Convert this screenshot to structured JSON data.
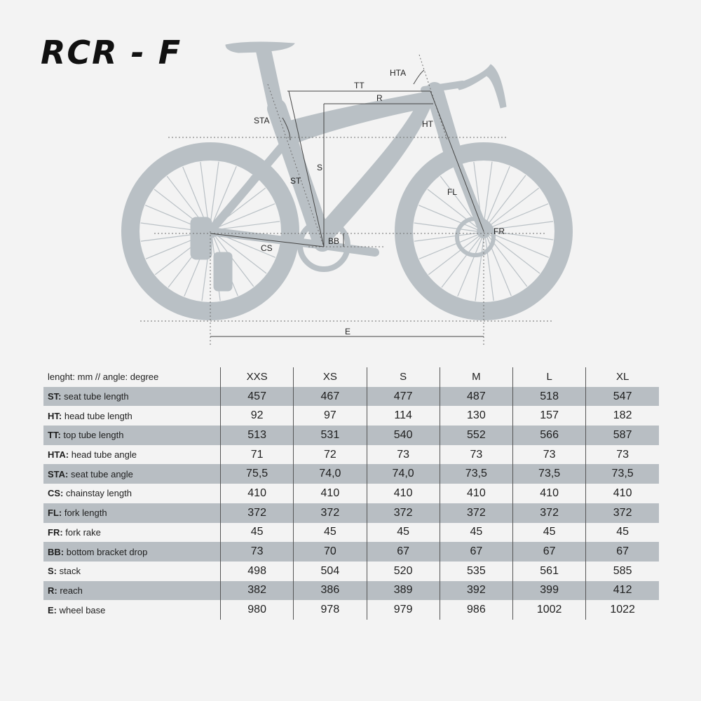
{
  "title": "RCR - F",
  "dimension_labels": {
    "hta": "HTA",
    "tt": "TT",
    "r": "R",
    "sta": "STA",
    "ht": "HT",
    "s": "S",
    "st": "ST",
    "fl": "FL",
    "fr": "FR",
    "bb": "BB",
    "cs": "CS",
    "e": "E"
  },
  "colors": {
    "frame": "#b9c0c5",
    "stripe": "#b8bec3",
    "background": "#f3f3f3"
  },
  "table": {
    "header_label": "lenght: mm // angle: degree",
    "sizes": [
      "XXS",
      "XS",
      "S",
      "M",
      "L",
      "XL"
    ],
    "rows": [
      {
        "abbr": "ST:",
        "desc": "seat tube length",
        "values": [
          "457",
          "467",
          "477",
          "487",
          "518",
          "547"
        ]
      },
      {
        "abbr": "HT:",
        "desc": "head tube length",
        "values": [
          "92",
          "97",
          "114",
          "130",
          "157",
          "182"
        ]
      },
      {
        "abbr": "TT:",
        "desc": "top tube length",
        "values": [
          "513",
          "531",
          "540",
          "552",
          "566",
          "587"
        ]
      },
      {
        "abbr": "HTA:",
        "desc": "head tube angle",
        "values": [
          "71",
          "72",
          "73",
          "73",
          "73",
          "73"
        ]
      },
      {
        "abbr": "STA:",
        "desc": "seat tube angle",
        "values": [
          "75,5",
          "74,0",
          "74,0",
          "73,5",
          "73,5",
          "73,5"
        ]
      },
      {
        "abbr": "CS:",
        "desc": "chainstay length",
        "values": [
          "410",
          "410",
          "410",
          "410",
          "410",
          "410"
        ]
      },
      {
        "abbr": "FL:",
        "desc": "fork length",
        "values": [
          "372",
          "372",
          "372",
          "372",
          "372",
          "372"
        ]
      },
      {
        "abbr": "FR:",
        "desc": "fork rake",
        "values": [
          "45",
          "45",
          "45",
          "45",
          "45",
          "45"
        ]
      },
      {
        "abbr": "BB:",
        "desc": "bottom bracket drop",
        "values": [
          "73",
          "70",
          "67",
          "67",
          "67",
          "67"
        ]
      },
      {
        "abbr": "S:",
        "desc": "stack",
        "values": [
          "498",
          "504",
          "520",
          "535",
          "561",
          "585"
        ]
      },
      {
        "abbr": "R:",
        "desc": "reach",
        "values": [
          "382",
          "386",
          "389",
          "392",
          "399",
          "412"
        ]
      },
      {
        "abbr": "E:",
        "desc": "wheel base",
        "values": [
          "980",
          "978",
          "979",
          "986",
          "1002",
          "1022"
        ]
      }
    ]
  }
}
